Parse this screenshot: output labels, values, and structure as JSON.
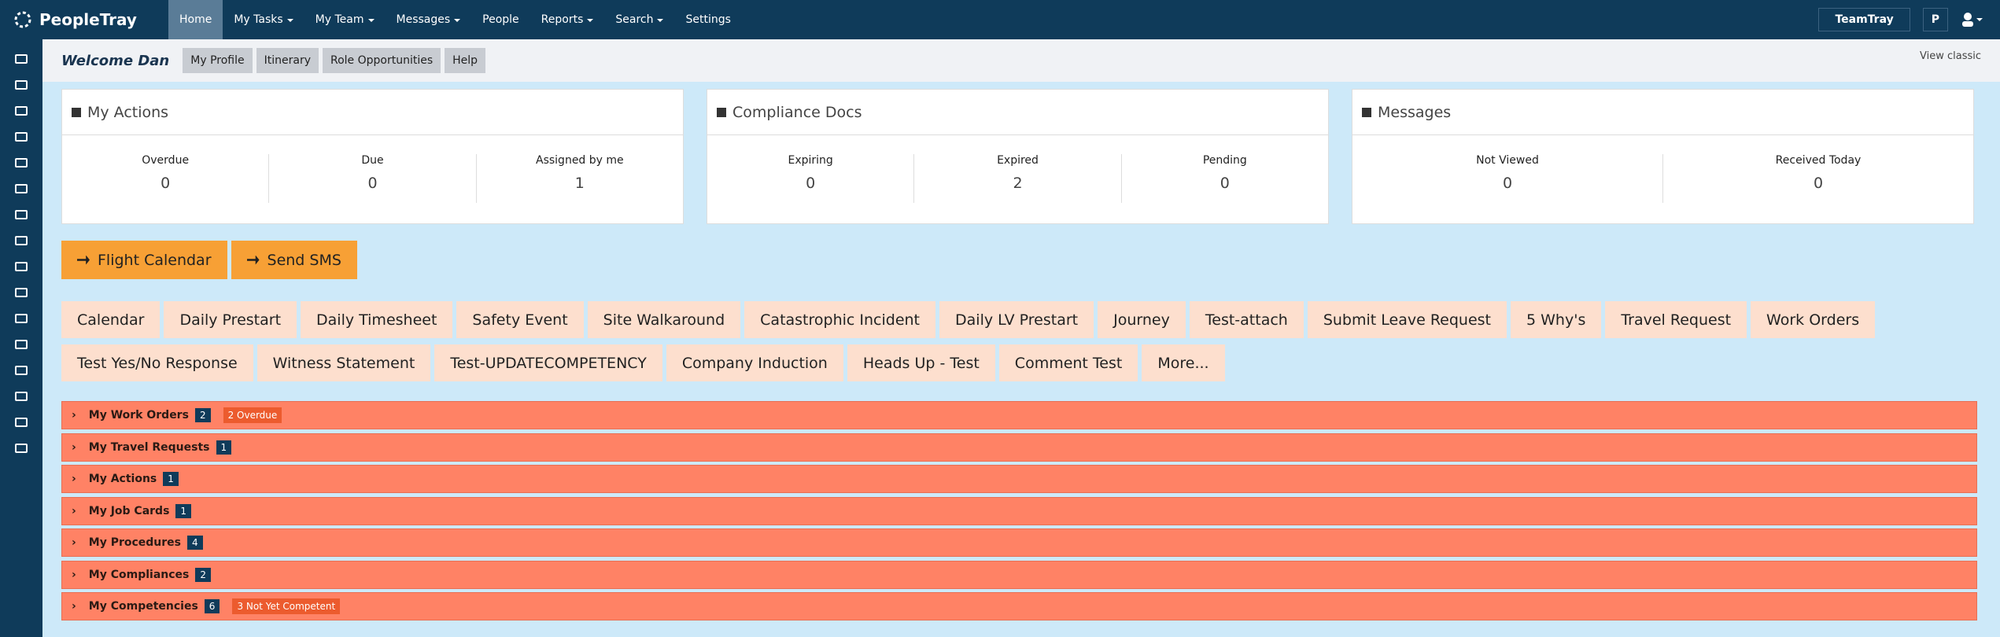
{
  "brand": "PeopleTray",
  "nav": [
    {
      "label": "Home",
      "menu": false,
      "active": true
    },
    {
      "label": "My Tasks",
      "menu": true
    },
    {
      "label": "My Team",
      "menu": true
    },
    {
      "label": "Messages",
      "menu": true
    },
    {
      "label": "People",
      "menu": false
    },
    {
      "label": "Reports",
      "menu": true
    },
    {
      "label": "Search",
      "menu": true
    },
    {
      "label": "Settings",
      "menu": false
    }
  ],
  "team_button": "TeamTray",
  "user_initial": "P",
  "welcome": "Welcome Dan",
  "view_classic": "View classic",
  "profile_buttons": [
    "My Profile",
    "Itinerary",
    "Role Opportunities",
    "Help"
  ],
  "panels": [
    {
      "title": "My Actions",
      "stats": [
        {
          "label": "Overdue",
          "value": "0"
        },
        {
          "label": "Due",
          "value": "0"
        },
        {
          "label": "Assigned by me",
          "value": "1"
        }
      ]
    },
    {
      "title": "Compliance Docs",
      "stats": [
        {
          "label": "Expiring",
          "value": "0"
        },
        {
          "label": "Expired",
          "value": "2"
        },
        {
          "label": "Pending",
          "value": "0"
        }
      ]
    },
    {
      "title": "Messages",
      "stats": [
        {
          "label": "Not Viewed",
          "value": "0"
        },
        {
          "label": "Received Today",
          "value": "0"
        }
      ]
    }
  ],
  "action_buttons": [
    "Flight Calendar",
    "Send SMS"
  ],
  "quick_links": [
    "Calendar",
    "Daily Prestart",
    "Daily Timesheet",
    "Safety Event",
    "Site Walkaround",
    "Catastrophic Incident",
    "Daily LV Prestart",
    "Journey",
    "Test-attach",
    "Submit Leave Request",
    "5 Why's",
    "Travel Request",
    "Work Orders",
    "Test Yes/No Response",
    "Witness Statement",
    "Test-UPDATECOMPETENCY",
    "Company Induction",
    "Heads Up - Test",
    "Comment Test",
    "More..."
  ],
  "sections": [
    {
      "title": "My Work Orders",
      "count": "2",
      "badge": "2 Overdue"
    },
    {
      "title": "My Travel Requests",
      "count": "1"
    },
    {
      "title": "My Actions",
      "count": "1"
    },
    {
      "title": "My Job Cards",
      "count": "1"
    },
    {
      "title": "My Procedures",
      "count": "4"
    },
    {
      "title": "My Compliances",
      "count": "2"
    },
    {
      "title": "My Competencies",
      "count": "6",
      "badge": "3 Not Yet Competent"
    }
  ]
}
